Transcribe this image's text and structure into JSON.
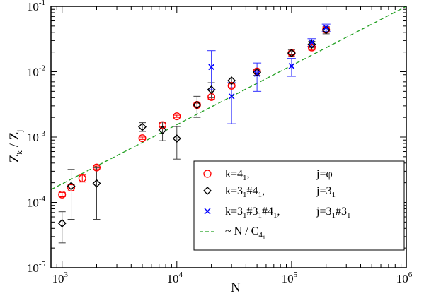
{
  "chart_data": {
    "type": "scatter",
    "x_scale": "log",
    "y_scale": "log",
    "xlim": [
      800,
      1000000
    ],
    "ylim": [
      1e-05,
      0.1
    ],
    "xlabel": "N",
    "ylabel": "Z",
    "ylabel_sub_k": "k",
    "ylabel_sep": " / ",
    "ylabel_sub_j": "j",
    "x_ticks": [
      {
        "value": 1000,
        "base": "10",
        "exp": "3"
      },
      {
        "value": 10000,
        "base": "10",
        "exp": "4"
      },
      {
        "value": 100000,
        "base": "10",
        "exp": "5"
      },
      {
        "value": 1000000,
        "base": "10",
        "exp": "6"
      }
    ],
    "y_ticks": [
      {
        "value": 1e-05,
        "base": "10",
        "exp": "-5"
      },
      {
        "value": 0.0001,
        "base": "10",
        "exp": "-4"
      },
      {
        "value": 0.001,
        "base": "10",
        "exp": "-3"
      },
      {
        "value": 0.01,
        "base": "10",
        "exp": "-2"
      },
      {
        "value": 0.1,
        "base": "10",
        "exp": "-1"
      }
    ],
    "legend_position": "bottom-right",
    "series": [
      {
        "marker": "circle",
        "color": "#ff0000",
        "legend": {
          "k": "k=4",
          "k_sub": "1",
          "k_tail": ",",
          "j": "j=φ",
          "j_sub": "",
          "j_tail": ""
        },
        "points": [
          {
            "x": 1000,
            "y": 0.000132,
            "lo": 0.000122,
            "hi": 0.000142
          },
          {
            "x": 1200,
            "y": 0.000168,
            "lo": 0.00015,
            "hi": 0.000186
          },
          {
            "x": 1500,
            "y": 0.000233,
            "lo": 0.000205,
            "hi": 0.000262
          },
          {
            "x": 2000,
            "y": 0.000342,
            "lo": 0.000325,
            "hi": 0.00036
          },
          {
            "x": 5000,
            "y": 0.00096,
            "lo": 0.00092,
            "hi": 0.001
          },
          {
            "x": 7500,
            "y": 0.00152,
            "lo": 0.00145,
            "hi": 0.00159
          },
          {
            "x": 10000,
            "y": 0.00208,
            "lo": 0.002,
            "hi": 0.00216
          },
          {
            "x": 15000,
            "y": 0.0031,
            "lo": 0.0029,
            "hi": 0.0033
          },
          {
            "x": 20000,
            "y": 0.0041,
            "lo": 0.0038,
            "hi": 0.0044
          },
          {
            "x": 30000,
            "y": 0.0061,
            "lo": 0.0057,
            "hi": 0.0065
          },
          {
            "x": 50000,
            "y": 0.0101,
            "lo": 0.0096,
            "hi": 0.0106
          },
          {
            "x": 100000,
            "y": 0.0192,
            "lo": 0.0182,
            "hi": 0.0202
          },
          {
            "x": 150000,
            "y": 0.0235,
            "lo": 0.0215,
            "hi": 0.0255
          },
          {
            "x": 200000,
            "y": 0.044,
            "lo": 0.04,
            "hi": 0.048
          }
        ]
      },
      {
        "marker": "diamond",
        "color": "#000000",
        "legend": {
          "k": "k=3",
          "k_sub": "1",
          "k_tail": "#4",
          "k_sub2": "1",
          "k_tail2": ",",
          "j": "j=3",
          "j_sub": "1",
          "j_tail": ""
        },
        "points": [
          {
            "x": 1000,
            "y": 4.8e-05,
            "lo": 2.4e-05,
            "hi": 7.2e-05
          },
          {
            "x": 1200,
            "y": 0.000178,
            "lo": 5.5e-05,
            "hi": 0.00032
          },
          {
            "x": 2000,
            "y": 0.000195,
            "lo": 5.5e-05,
            "hi": 0.00034
          },
          {
            "x": 5000,
            "y": 0.00143,
            "lo": 0.00122,
            "hi": 0.00166
          },
          {
            "x": 7500,
            "y": 0.00128,
            "lo": 0.00088,
            "hi": 0.00168
          },
          {
            "x": 10000,
            "y": 0.00095,
            "lo": 0.00046,
            "hi": 0.00145
          },
          {
            "x": 15000,
            "y": 0.0031,
            "lo": 0.002,
            "hi": 0.0042
          },
          {
            "x": 20000,
            "y": 0.0053,
            "lo": 0.004,
            "hi": 0.0068
          },
          {
            "x": 30000,
            "y": 0.0073,
            "lo": 0.0066,
            "hi": 0.008
          },
          {
            "x": 50000,
            "y": 0.0098,
            "lo": 0.0088,
            "hi": 0.0108
          },
          {
            "x": 100000,
            "y": 0.0193,
            "lo": 0.0171,
            "hi": 0.0215
          },
          {
            "x": 150000,
            "y": 0.0262,
            "lo": 0.0232,
            "hi": 0.0292
          },
          {
            "x": 200000,
            "y": 0.0435,
            "lo": 0.038,
            "hi": 0.049
          }
        ]
      },
      {
        "marker": "x",
        "color": "#0000ff",
        "legend": {
          "k": "k=3",
          "k_sub": "1",
          "k_tail": "#3",
          "k_sub2": "1",
          "k_tail2": "#4",
          "k_sub3": "1",
          "k_tail3": ",",
          "j": "j=3",
          "j_sub": "1",
          "j_tail": "#3",
          "j_sub2": "1"
        },
        "points": [
          {
            "x": 20000,
            "y": 0.0118,
            "lo": 0.0053,
            "hi": 0.021
          },
          {
            "x": 30000,
            "y": 0.0042,
            "lo": 0.0016,
            "hi": 0.0068
          },
          {
            "x": 50000,
            "y": 0.0093,
            "lo": 0.005,
            "hi": 0.0136
          },
          {
            "x": 100000,
            "y": 0.0122,
            "lo": 0.0085,
            "hi": 0.016
          },
          {
            "x": 150000,
            "y": 0.0282,
            "lo": 0.0245,
            "hi": 0.032
          },
          {
            "x": 200000,
            "y": 0.0475,
            "lo": 0.0415,
            "hi": 0.0535
          }
        ]
      }
    ],
    "fit_line": {
      "color": "#22a022",
      "style": "dashed",
      "label": "~ N / C",
      "label_sub": "4",
      "label_subsub": "1",
      "x": [
        800,
        1000000
      ],
      "y": [
        0.000157,
        0.1
      ]
    }
  }
}
